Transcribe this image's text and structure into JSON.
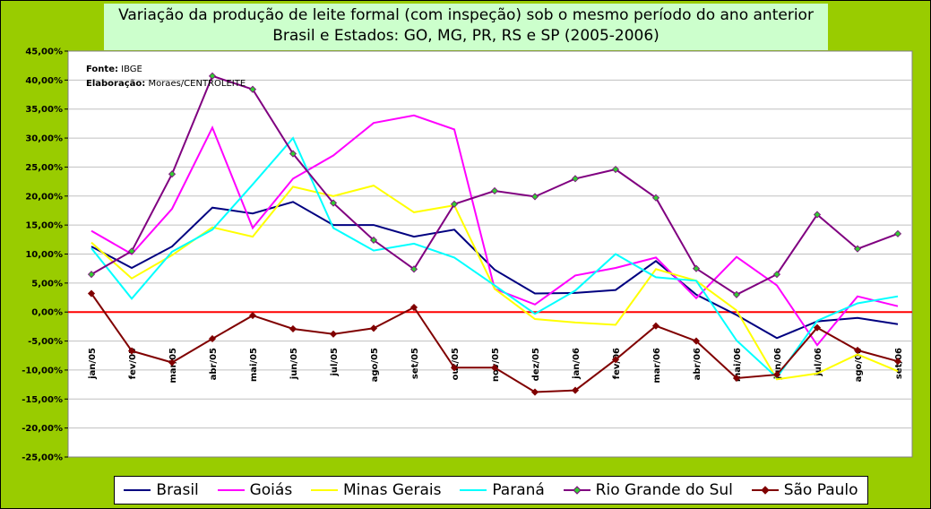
{
  "chart_data": {
    "type": "line",
    "title": "Variação da produção de leite formal (com inspeção) sob o mesmo período do ano anterior",
    "subtitle": "Brasil e Estados: GO, MG, PR, RS e SP (2005-2006)",
    "note_source_label": "Fonte:",
    "note_source_value": "IBGE",
    "note_elab_label": "Elaboração:",
    "note_elab_value": "Moraes/CENTROLEITE",
    "categories": [
      "jan/05",
      "fev/05",
      "mar/05",
      "abr/05",
      "mai/05",
      "jun/05",
      "jul/05",
      "ago/05",
      "set/05",
      "out/05",
      "nov/05",
      "dez/05",
      "jan/06",
      "fev/06",
      "mar/06",
      "abr/06",
      "mai/06",
      "jun/06",
      "jul/06",
      "ago/06",
      "set/06"
    ],
    "ylim": [
      -25,
      45
    ],
    "yticks": [
      "-25,00%",
      "-20,00%",
      "-15,00%",
      "-10,00%",
      "-5,00%",
      "0,00%",
      "5,00%",
      "10,00%",
      "15,00%",
      "20,00%",
      "25,00%",
      "30,00%",
      "35,00%",
      "40,00%",
      "45,00%"
    ],
    "grid": "horizontal",
    "legend_position": "bottom",
    "series": [
      {
        "name": "Brasil",
        "color": "#000080",
        "marker": "none",
        "values": [
          11.3,
          7.6,
          11.3,
          18.0,
          17.0,
          19.0,
          15.0,
          15.0,
          13.0,
          14.2,
          7.3,
          3.2,
          3.3,
          3.8,
          8.8,
          3.0,
          -0.5,
          -4.5,
          -1.6,
          -1.0,
          -2.1
        ]
      },
      {
        "name": "Goiás",
        "color": "#FF00FF",
        "marker": "none",
        "values": [
          14.0,
          10.0,
          17.8,
          31.8,
          14.5,
          23.0,
          27.0,
          32.6,
          33.9,
          31.5,
          4.0,
          1.3,
          6.3,
          7.6,
          9.4,
          2.4,
          9.5,
          4.6,
          -5.7,
          2.7,
          1.0
        ]
      },
      {
        "name": "Minas Gerais",
        "color": "#FFFF00",
        "marker": "none",
        "values": [
          12.0,
          5.8,
          9.8,
          14.6,
          13.0,
          21.6,
          20.0,
          21.8,
          17.2,
          18.4,
          4.0,
          -1.2,
          -1.8,
          -2.2,
          7.4,
          5.4,
          0.3,
          -11.6,
          -10.6,
          -7.3,
          -10.2
        ]
      },
      {
        "name": "Paraná",
        "color": "#00FFFF",
        "marker": "none",
        "values": [
          11.0,
          2.3,
          10.4,
          14.2,
          22.0,
          30.0,
          14.5,
          10.6,
          11.8,
          9.4,
          4.6,
          -0.3,
          3.7,
          10.0,
          6.0,
          5.4,
          -4.9,
          -11.3,
          -1.5,
          1.5,
          2.7
        ]
      },
      {
        "name": "Rio Grande do Sul",
        "color": "#800080",
        "marker": "diamond",
        "marker_color": "#33CC33",
        "values": [
          6.5,
          10.5,
          23.8,
          40.7,
          38.4,
          27.3,
          18.8,
          12.4,
          7.4,
          18.6,
          20.9,
          19.9,
          23.0,
          24.6,
          19.7,
          7.5,
          3.0,
          6.5,
          16.8,
          10.9,
          13.5
        ]
      },
      {
        "name": "São Paulo",
        "color": "#800000",
        "marker": "diamond",
        "marker_color": "#800000",
        "values": [
          3.2,
          -6.7,
          -8.7,
          -4.6,
          -0.6,
          -2.9,
          -3.8,
          -2.8,
          0.8,
          -9.6,
          -9.6,
          -13.8,
          -13.5,
          -8.2,
          -2.4,
          -5.0,
          -11.4,
          -10.8,
          -2.7,
          -6.6,
          -8.5
        ]
      }
    ]
  }
}
